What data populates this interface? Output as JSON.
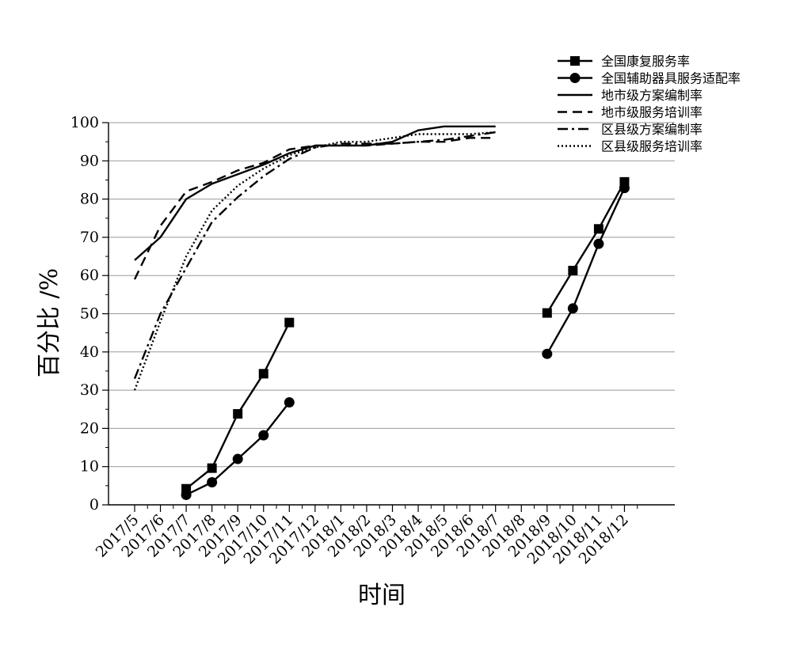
{
  "chart_data": {
    "type": "line",
    "title": "",
    "xlabel": "时间",
    "ylabel": "百分比 /%",
    "ylim": [
      0,
      100
    ],
    "yticks": [
      0,
      10,
      20,
      30,
      40,
      50,
      60,
      70,
      80,
      90,
      100
    ],
    "grid": true,
    "legend_position": "top-right",
    "categories": [
      "2017/5",
      "2017/6",
      "2017/7",
      "2017/8",
      "2017/9",
      "2017/10",
      "2017/11",
      "2017/12",
      "2018/1",
      "2018/2",
      "2018/3",
      "2018/4",
      "2018/5",
      "2018/6",
      "2018/7",
      "2018/8",
      "2018/9",
      "2018/10",
      "2018/11",
      "2018/12"
    ],
    "series": [
      {
        "name": "全国康复服务率",
        "style": "solid",
        "marker": "square",
        "values": [
          null,
          null,
          4.2,
          9.6,
          23.8,
          34.3,
          47.7,
          null,
          null,
          null,
          null,
          null,
          null,
          null,
          null,
          null,
          50.2,
          61.3,
          72.2,
          84.5
        ]
      },
      {
        "name": "全国辅助器具服务适配率",
        "style": "solid",
        "marker": "circle",
        "values": [
          null,
          null,
          2.6,
          5.9,
          12.0,
          18.2,
          26.8,
          null,
          null,
          null,
          null,
          null,
          null,
          null,
          null,
          null,
          39.5,
          51.4,
          68.3,
          82.9
        ]
      },
      {
        "name": "地市级方案编制率",
        "style": "solid",
        "marker": "none",
        "values": [
          64,
          70,
          80,
          84,
          86.5,
          89,
          92,
          94,
          94,
          94,
          95,
          98,
          99,
          99,
          99,
          null,
          null,
          null,
          null,
          null
        ]
      },
      {
        "name": "地市级服务培训率",
        "style": "dashed",
        "marker": "none",
        "values": [
          59,
          73,
          82,
          84.5,
          87.5,
          89.5,
          93,
          94,
          94,
          94,
          94.5,
          95,
          95,
          96,
          96,
          null,
          null,
          null,
          null,
          null
        ]
      },
      {
        "name": "区县级方案编制率",
        "style": "dashdot",
        "marker": "none",
        "values": [
          33,
          50,
          62,
          74,
          80.5,
          86,
          90.5,
          93.5,
          94.5,
          94.5,
          94.5,
          95,
          95.5,
          96.5,
          97.5,
          null,
          null,
          null,
          null,
          null
        ]
      },
      {
        "name": "区县级服务培训率",
        "style": "dotted",
        "marker": "none",
        "values": [
          30,
          48,
          65,
          77,
          83.5,
          88,
          91.5,
          93.5,
          95,
          95,
          96,
          97,
          97,
          97,
          97.5,
          null,
          null,
          null,
          null,
          null
        ]
      }
    ]
  }
}
